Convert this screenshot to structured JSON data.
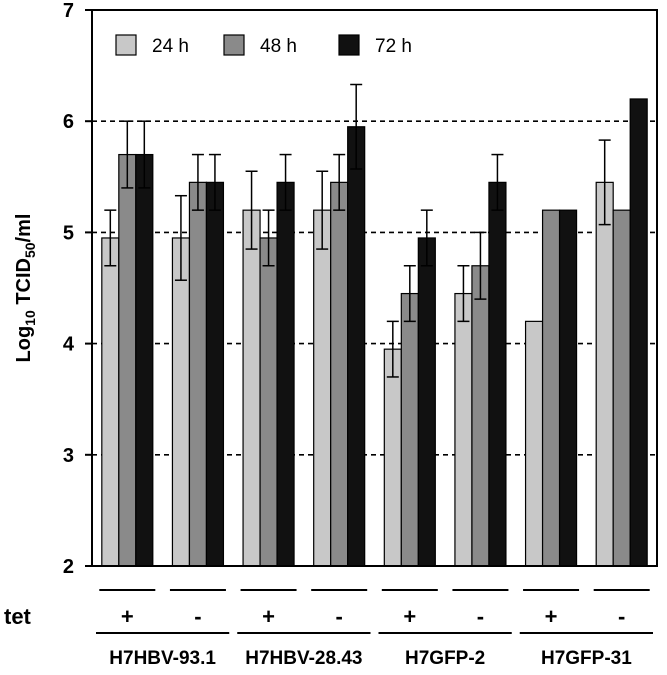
{
  "chart_data": {
    "type": "bar",
    "ylabel": "Log10 TCID50/ml",
    "ylabel_parts": {
      "pre": "Log",
      "sub1": "10",
      "mid": " TCID",
      "sub2": "50",
      "post": "/ml"
    },
    "ylim": [
      2,
      7
    ],
    "yticks": [
      "2",
      "3",
      "4",
      "5",
      "6",
      "7"
    ],
    "gridlines": [
      3,
      4,
      5,
      6
    ],
    "legend_position": "top-left",
    "tet_label": "tet",
    "categories": [
      "+",
      "-",
      "+",
      "-",
      "+",
      "-",
      "+",
      "-"
    ],
    "groups": [
      "H7HBV-93.1",
      "H7HBV-28.43",
      "H7GFP-2",
      "H7GFP-31"
    ],
    "series": [
      {
        "name": "24 h",
        "color": "#c8c8c8",
        "values": [
          4.95,
          4.95,
          5.2,
          5.2,
          3.95,
          4.45,
          4.2,
          5.45
        ],
        "errors": [
          0.25,
          0.38,
          0.35,
          0.35,
          0.25,
          0.25,
          null,
          0.38
        ]
      },
      {
        "name": "48 h",
        "color": "#8a8a8a",
        "values": [
          5.7,
          5.45,
          4.95,
          5.45,
          4.45,
          4.7,
          5.2,
          5.2
        ],
        "errors": [
          0.3,
          0.25,
          0.25,
          0.25,
          0.25,
          0.3,
          null,
          null
        ]
      },
      {
        "name": "72 h",
        "color": "#111111",
        "values": [
          5.7,
          5.45,
          5.45,
          5.95,
          4.95,
          5.45,
          5.2,
          6.2
        ],
        "errors": [
          0.3,
          0.25,
          0.25,
          0.38,
          0.25,
          0.25,
          null,
          null
        ]
      }
    ]
  }
}
